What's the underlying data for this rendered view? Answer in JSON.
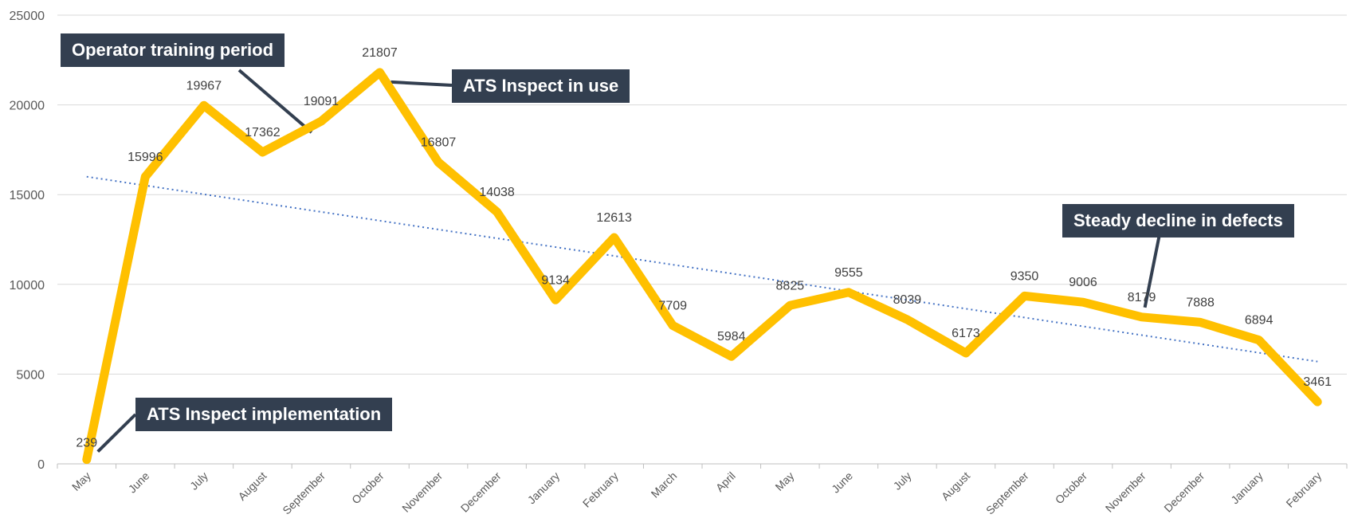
{
  "chart_data": {
    "type": "line",
    "categories": [
      "May",
      "June",
      "July",
      "August",
      "September",
      "October",
      "November",
      "December",
      "January",
      "February",
      "March",
      "April",
      "May",
      "June",
      "July",
      "August",
      "September",
      "October",
      "November",
      "December",
      "January",
      "February"
    ],
    "series": [
      {
        "values": [
          239,
          15996,
          19967,
          17362,
          19091,
          21807,
          16807,
          14038,
          9134,
          12613,
          7709,
          5984,
          8825,
          9555,
          8039,
          6173,
          9350,
          9006,
          8179,
          7888,
          6894,
          3461
        ]
      }
    ],
    "trendline": {
      "style": "dotted",
      "start": 16000,
      "end": 5700
    },
    "ylim": [
      0,
      25000
    ],
    "yticks": [
      0,
      5000,
      10000,
      15000,
      20000,
      25000
    ],
    "grid": true,
    "colors": {
      "line": "#ffc000",
      "trend": "#4472c4",
      "grid": "#d9d9d9",
      "callout": "#333f50"
    },
    "annotations": [
      {
        "text": "Operator training period"
      },
      {
        "text": "ATS Inspect in use"
      },
      {
        "text": "Steady decline in defects"
      },
      {
        "text": "ATS Inspect implementation"
      }
    ]
  }
}
